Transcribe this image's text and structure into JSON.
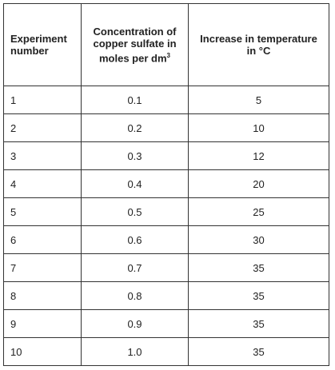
{
  "table": {
    "header": [
      "Experiment number",
      {
        "text": "Concentration of copper sulfate in moles per dm",
        "sup": "3"
      },
      "Increase in temperature in °C"
    ],
    "rows": [
      [
        "1",
        "0.1",
        "5"
      ],
      [
        "2",
        "0.2",
        "10"
      ],
      [
        "3",
        "0.3",
        "12"
      ],
      [
        "4",
        "0.4",
        "20"
      ],
      [
        "5",
        "0.5",
        "25"
      ],
      [
        "6",
        "0.6",
        "30"
      ],
      [
        "7",
        "0.7",
        "35"
      ],
      [
        "8",
        "0.8",
        "35"
      ],
      [
        "9",
        "0.9",
        "35"
      ],
      [
        "10",
        "1.0",
        "35"
      ]
    ]
  }
}
